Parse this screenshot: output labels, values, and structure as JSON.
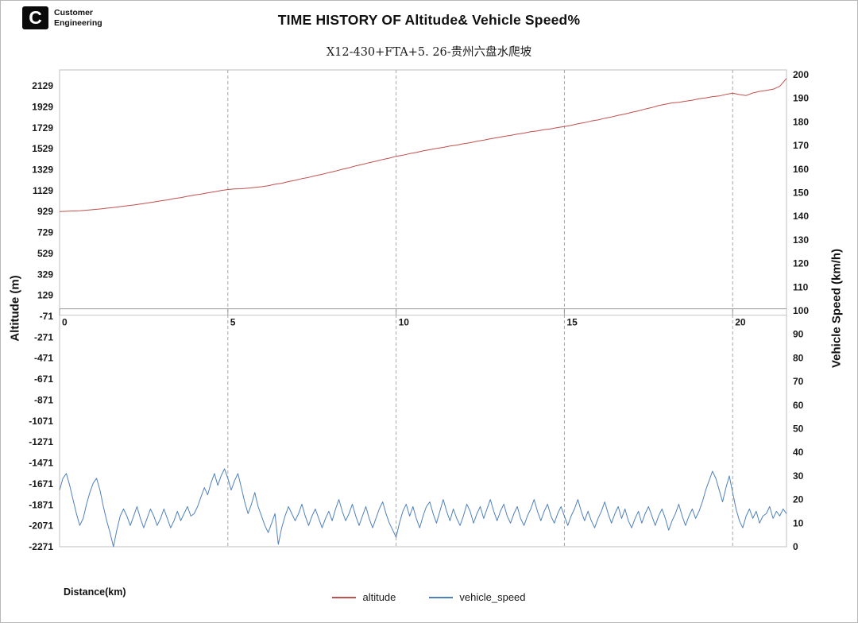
{
  "logo": {
    "mark": "C",
    "line1": "Customer",
    "line2": "Engineering"
  },
  "title": "TIME HISTORY OF Altitude& Vehicle Speed%",
  "subtitle": "X12-430+FTA+5. 26-贵州六盘水爬坡",
  "legend": {
    "items": [
      {
        "label": "altitude",
        "color": "#c0504d"
      },
      {
        "label": "vehicle_speed",
        "color": "#4f81bd"
      }
    ]
  },
  "chart_data": {
    "type": "line",
    "title": "TIME HISTORY OF Altitude& Vehicle Speed%",
    "subtitle": "X12-430+FTA+5. 26-贵州六盘水爬坡",
    "xlabel": "Distance(km)",
    "x_range": [
      0,
      21.6
    ],
    "x_ticks": [
      0,
      5,
      10,
      15,
      20
    ],
    "grid": {
      "vertical": "dashed",
      "horizontal": false
    },
    "legend_position": "bottom",
    "y_left": {
      "label": "Altitude (m)",
      "range": [
        -2271,
        2281
      ],
      "ticks": [
        2129,
        1929,
        1729,
        1529,
        1329,
        1129,
        929,
        729,
        529,
        329,
        129,
        -71,
        -271,
        -471,
        -671,
        -871,
        -1071,
        -1271,
        -1471,
        -1671,
        -1871,
        -2071,
        -2271
      ]
    },
    "y_right": {
      "label": "Vehicle Speed (km/h)",
      "range": [
        0,
        202
      ],
      "ticks": [
        200,
        190,
        180,
        170,
        160,
        150,
        140,
        130,
        120,
        110,
        100,
        90,
        80,
        70,
        60,
        50,
        40,
        30,
        20,
        10,
        0
      ]
    },
    "series": [
      {
        "name": "altitude",
        "axis": "left",
        "color": "#c0504d",
        "x0": 0,
        "dx": 0.2,
        "values": [
          929,
          931,
          934,
          937,
          942,
          948,
          953,
          961,
          968,
          976,
          984,
          991,
          1001,
          1010,
          1020,
          1031,
          1040,
          1053,
          1062,
          1075,
          1086,
          1095,
          1108,
          1117,
          1130,
          1139,
          1145,
          1147,
          1153,
          1159,
          1166,
          1175,
          1189,
          1199,
          1215,
          1227,
          1243,
          1255,
          1271,
          1284,
          1301,
          1315,
          1333,
          1347,
          1365,
          1379,
          1396,
          1409,
          1426,
          1439,
          1456,
          1467,
          1482,
          1493,
          1508,
          1519,
          1532,
          1541,
          1554,
          1563,
          1576,
          1586,
          1600,
          1610,
          1624,
          1634,
          1647,
          1656,
          1669,
          1678,
          1691,
          1699,
          1711,
          1719,
          1731,
          1741,
          1752,
          1767,
          1778,
          1793,
          1804,
          1820,
          1832,
          1848,
          1860,
          1876,
          1890,
          1908,
          1922,
          1940,
          1954,
          1966,
          1972,
          1982,
          1992,
          2006,
          2014,
          2026,
          2032,
          2047,
          2059,
          2046,
          2037,
          2061,
          2076,
          2086,
          2097,
          2125,
          2200
        ]
      },
      {
        "name": "vehicle_speed",
        "axis": "right",
        "color": "#4f81bd",
        "x0": 0,
        "dx": 0.1,
        "values": [
          24,
          29,
          31,
          26,
          20,
          14,
          9,
          12,
          18,
          23,
          27,
          29,
          24,
          17,
          11,
          6,
          0,
          7,
          13,
          16,
          13,
          9,
          13,
          17,
          12,
          8,
          12,
          16,
          13,
          9,
          12,
          16,
          12,
          8,
          11,
          15,
          11,
          14,
          17,
          13,
          14,
          17,
          21,
          25,
          22,
          27,
          31,
          26,
          30,
          33,
          29,
          24,
          28,
          31,
          25,
          19,
          14,
          18,
          23,
          17,
          13,
          9,
          6,
          10,
          14,
          1,
          8,
          13,
          17,
          14,
          11,
          14,
          18,
          13,
          9,
          13,
          16,
          12,
          8,
          12,
          15,
          11,
          16,
          20,
          15,
          11,
          14,
          18,
          13,
          9,
          13,
          17,
          12,
          8,
          12,
          16,
          19,
          14,
          10,
          7,
          4,
          10,
          15,
          18,
          13,
          17,
          12,
          8,
          13,
          17,
          19,
          14,
          10,
          15,
          20,
          15,
          11,
          16,
          12,
          9,
          13,
          18,
          15,
          10,
          14,
          17,
          12,
          16,
          20,
          15,
          11,
          15,
          18,
          13,
          10,
          14,
          17,
          12,
          9,
          13,
          16,
          20,
          15,
          11,
          15,
          18,
          13,
          10,
          14,
          17,
          13,
          9,
          13,
          16,
          20,
          15,
          11,
          15,
          11,
          8,
          12,
          15,
          19,
          14,
          10,
          14,
          17,
          12,
          16,
          11,
          8,
          12,
          15,
          10,
          14,
          17,
          13,
          9,
          13,
          16,
          12,
          7,
          11,
          14,
          18,
          13,
          9,
          13,
          16,
          12,
          15,
          19,
          24,
          28,
          32,
          29,
          24,
          19,
          25,
          30,
          23,
          16,
          11,
          8,
          13,
          16,
          12,
          15,
          10,
          13,
          14,
          17,
          12,
          15,
          13,
          16,
          14
        ]
      }
    ]
  }
}
